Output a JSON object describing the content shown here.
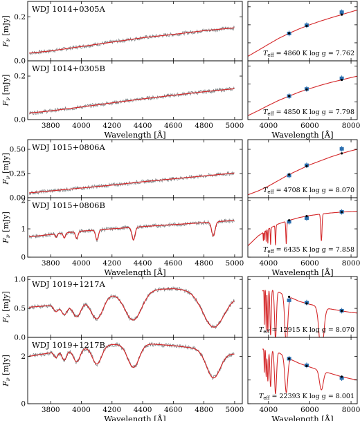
{
  "chart_data": [
    {
      "type": "line",
      "panel": "spectrum",
      "label": "WDJ 1014+0305A",
      "ylabel": "F_ν [mJy]",
      "ylabel_parts": {
        "main": "F",
        "sub": "ν",
        "unit": " [mJy]"
      },
      "xlim": [
        3650,
        5050
      ],
      "ylim": [
        0,
        0.27
      ],
      "yticks": [
        0.0,
        0.2
      ],
      "ytick_labels": [
        "0.0",
        "0.2"
      ],
      "xticks": [
        3800,
        4000,
        4200,
        4400,
        4600,
        4800,
        5000
      ],
      "xtick_labels": [],
      "xlabel": "",
      "x": [
        3660,
        3800,
        4000,
        4200,
        4400,
        4600,
        4800,
        5000
      ],
      "y": [
        0.035,
        0.045,
        0.065,
        0.085,
        0.105,
        0.12,
        0.137,
        0.15
      ],
      "lines": []
    },
    {
      "type": "scatter",
      "panel": "sed",
      "xlim": [
        3000,
        8300
      ],
      "ylim": [
        0,
        0.33
      ],
      "xticks": [
        4000,
        6000,
        8000
      ],
      "xtick_labels": [],
      "yticks": [
        0.0,
        0.1,
        0.2,
        0.3
      ],
      "teff": "4860",
      "logg": "7.762",
      "teff_label": {
        "t": "T",
        "sub": "eff",
        "rest": " = 4860 K  log g = 7.762"
      },
      "model_x": [
        3000,
        3500,
        4000,
        4500,
        5000,
        5500,
        6000,
        6500,
        7000,
        7500,
        8000,
        8300
      ],
      "model_y": [
        0.025,
        0.058,
        0.092,
        0.125,
        0.153,
        0.178,
        0.2,
        0.22,
        0.238,
        0.255,
        0.272,
        0.282
      ],
      "phot_x": [
        5000,
        5850,
        7550
      ],
      "phot_y": [
        0.152,
        0.198,
        0.27
      ],
      "lines": []
    },
    {
      "type": "line",
      "panel": "spectrum",
      "label": "WDJ 1014+0305B",
      "ylabel": "F_ν [mJy]",
      "ylabel_parts": {
        "main": "F",
        "sub": "ν",
        "unit": " [mJy]"
      },
      "xlim": [
        3650,
        5050
      ],
      "ylim": [
        0,
        0.27
      ],
      "yticks": [
        0.0,
        0.2
      ],
      "ytick_labels": [
        "0.0",
        "0.2"
      ],
      "xticks": [
        3800,
        4000,
        4200,
        4400,
        4600,
        4800,
        5000
      ],
      "xtick_labels": [
        "3800",
        "4000",
        "4200",
        "4400",
        "4600",
        "4800",
        "5000"
      ],
      "xlabel": "Wavelength [Å]",
      "x": [
        3660,
        3800,
        4000,
        4200,
        4400,
        4600,
        4800,
        5000
      ],
      "y": [
        0.03,
        0.04,
        0.058,
        0.077,
        0.095,
        0.112,
        0.128,
        0.142
      ],
      "lines": []
    },
    {
      "type": "scatter",
      "panel": "sed",
      "xlim": [
        3000,
        8300
      ],
      "ylim": [
        0,
        0.33
      ],
      "xticks": [
        4000,
        6000,
        8000
      ],
      "xtick_labels": [
        "4000",
        "6000",
        "8000"
      ],
      "xlabel": "Wavelength [Å]",
      "yticks": [
        0.0,
        0.1,
        0.2,
        0.3
      ],
      "teff": "4850",
      "logg": "7.798",
      "teff_label": {
        "t": "T",
        "sub": "eff",
        "rest": " = 4850 K  log g = 7.798"
      },
      "model_x": [
        3000,
        3500,
        4000,
        4500,
        5000,
        5500,
        6000,
        6500,
        7000,
        7500,
        8000,
        8300
      ],
      "model_y": [
        0.022,
        0.05,
        0.08,
        0.108,
        0.132,
        0.155,
        0.174,
        0.192,
        0.208,
        0.222,
        0.236,
        0.244
      ],
      "phot_x": [
        5000,
        5850,
        7550
      ],
      "phot_y": [
        0.132,
        0.172,
        0.232
      ],
      "lines": []
    },
    {
      "type": "line",
      "panel": "spectrum",
      "label": "WDJ 1015+0806A",
      "ylabel": "F_ν [mJy]",
      "ylabel_parts": {
        "main": "F",
        "sub": "ν",
        "unit": " [mJy]"
      },
      "xlim": [
        3650,
        5050
      ],
      "ylim": [
        0,
        0.6
      ],
      "yticks": [
        0.0,
        0.25,
        0.5
      ],
      "ytick_labels": [
        "0.00",
        "0.25",
        "0.50"
      ],
      "xticks": [
        3800,
        4000,
        4200,
        4400,
        4600,
        4800,
        5000
      ],
      "xtick_labels": [],
      "xlabel": "",
      "x": [
        3660,
        3800,
        4000,
        4200,
        4400,
        4600,
        4800,
        5000
      ],
      "y": [
        0.05,
        0.07,
        0.1,
        0.13,
        0.165,
        0.195,
        0.225,
        0.255
      ],
      "lines": []
    },
    {
      "type": "scatter",
      "panel": "sed",
      "xlim": [
        3000,
        8300
      ],
      "ylim": [
        0,
        0.6
      ],
      "xticks": [
        4000,
        6000,
        8000
      ],
      "xtick_labels": [],
      "yticks": [
        0.0,
        0.25,
        0.5
      ],
      "teff": "4708",
      "logg": "8.070",
      "teff_label": {
        "t": "T",
        "sub": "eff",
        "rest": " = 4708 K  log g = 8.070"
      },
      "model_x": [
        3000,
        3500,
        4000,
        4500,
        5000,
        5500,
        6000,
        6500,
        7000,
        7500,
        8000,
        8300
      ],
      "model_y": [
        0.03,
        0.07,
        0.12,
        0.18,
        0.24,
        0.29,
        0.34,
        0.38,
        0.42,
        0.455,
        0.485,
        0.5
      ],
      "phot_x": [
        5000,
        5850,
        7550
      ],
      "phot_y": [
        0.23,
        0.335,
        0.505
      ],
      "lines": []
    },
    {
      "type": "line",
      "panel": "spectrum",
      "label": "WDJ 1015+0806B",
      "ylabel": "F_ν [mJy]",
      "ylabel_parts": {
        "main": "F",
        "sub": "ν",
        "unit": " [mJy]"
      },
      "xlim": [
        3650,
        5050
      ],
      "ylim": [
        0,
        2.1
      ],
      "yticks": [
        0,
        1,
        2
      ],
      "ytick_labels": [
        "0",
        "1",
        "2"
      ],
      "xticks": [
        3800,
        4000,
        4200,
        4400,
        4600,
        4800,
        5000
      ],
      "xtick_labels": [
        "3800",
        "4000",
        "4200",
        "4400",
        "4600",
        "4800",
        "5000"
      ],
      "xlabel": "Wavelength [Å]",
      "x": [
        3660,
        3800,
        4000,
        4200,
        4400,
        4600,
        4800,
        5000
      ],
      "y": [
        0.72,
        0.8,
        0.92,
        1.0,
        1.08,
        1.15,
        1.22,
        1.3
      ],
      "lines": [
        {
          "c": 3835,
          "depth": 0.12,
          "width": 6
        },
        {
          "c": 3889,
          "depth": 0.18,
          "width": 7
        },
        {
          "c": 3970,
          "depth": 0.25,
          "width": 8
        },
        {
          "c": 4102,
          "depth": 0.35,
          "width": 9
        },
        {
          "c": 4340,
          "depth": 0.45,
          "width": 10
        },
        {
          "c": 4861,
          "depth": 0.5,
          "width": 11
        }
      ]
    },
    {
      "type": "scatter",
      "panel": "sed",
      "xlim": [
        3000,
        8300
      ],
      "ylim": [
        0,
        2.1
      ],
      "xticks": [
        4000,
        6000,
        8000
      ],
      "xtick_labels": [
        "4000",
        "6000",
        "8000"
      ],
      "xlabel": "Wavelength [Å]",
      "yticks": [
        0,
        1,
        2
      ],
      "teff": "6435",
      "logg": "7.858",
      "teff_label": {
        "t": "T",
        "sub": "eff",
        "rest": " = 6435 K  log g = 7.858"
      },
      "model_x": [
        3000,
        3500,
        4000,
        4500,
        5000,
        5500,
        6000,
        6500,
        7000,
        7500,
        8000,
        8300
      ],
      "model_y": [
        0.4,
        0.75,
        1.0,
        1.18,
        1.3,
        1.4,
        1.47,
        1.52,
        1.56,
        1.59,
        1.61,
        1.62
      ],
      "phot_x": [
        5000,
        5850,
        7550
      ],
      "phot_y": [
        1.25,
        1.38,
        1.6
      ],
      "lines": [
        {
          "c": 3750,
          "depth": 0.3,
          "width": 10
        },
        {
          "c": 3800,
          "depth": 0.3,
          "width": 10
        },
        {
          "c": 3889,
          "depth": 0.4,
          "width": 10
        },
        {
          "c": 3970,
          "depth": 0.5,
          "width": 12
        },
        {
          "c": 4102,
          "depth": 0.6,
          "width": 14
        },
        {
          "c": 4340,
          "depth": 0.7,
          "width": 18
        },
        {
          "c": 4861,
          "depth": 0.8,
          "width": 22
        },
        {
          "c": 6563,
          "depth": 0.95,
          "width": 30
        }
      ]
    },
    {
      "type": "line",
      "panel": "spectrum",
      "label": "WDJ 1019+1217A",
      "ylabel": "F_ν [mJy]",
      "ylabel_parts": {
        "main": "F",
        "sub": "ν",
        "unit": " [mJy]"
      },
      "xlim": [
        3650,
        5050
      ],
      "ylim": [
        0,
        1.05
      ],
      "yticks": [
        0.0,
        0.5,
        1.0
      ],
      "ytick_labels": [
        "0.0",
        "0.5",
        "1.0"
      ],
      "xticks": [
        3800,
        4000,
        4200,
        4400,
        4600,
        4800,
        5000
      ],
      "xtick_labels": [],
      "xlabel": "",
      "x": [
        3660,
        3800,
        4000,
        4200,
        4400,
        4600,
        4800,
        5000
      ],
      "y": [
        0.52,
        0.55,
        0.65,
        0.75,
        0.82,
        0.84,
        0.8,
        0.72
      ],
      "lines": [
        {
          "c": 3835,
          "depth": 0.12,
          "width": 15
        },
        {
          "c": 3889,
          "depth": 0.2,
          "width": 20
        },
        {
          "c": 3970,
          "depth": 0.28,
          "width": 28
        },
        {
          "c": 4102,
          "depth": 0.38,
          "width": 40
        },
        {
          "c": 4340,
          "depth": 0.5,
          "width": 55
        },
        {
          "c": 4861,
          "depth": 0.6,
          "width": 70
        }
      ]
    },
    {
      "type": "scatter",
      "panel": "sed",
      "xlim": [
        3000,
        8300
      ],
      "ylim": [
        0,
        1.05
      ],
      "xticks": [
        4000,
        6000,
        8000
      ],
      "xtick_labels": [],
      "yticks": [
        0.0,
        0.5,
        1.0
      ],
      "teff": "12915",
      "logg": "8.070",
      "teff_label": {
        "t": "T",
        "sub": "eff",
        "rest": " = 12915 K  log g = 8.070"
      },
      "model_x": [
        3700,
        4000,
        4500,
        5000,
        5500,
        6000,
        6500,
        7000,
        7500,
        8000,
        8300
      ],
      "model_y": [
        0.8,
        0.85,
        0.78,
        0.7,
        0.62,
        0.57,
        0.53,
        0.49,
        0.46,
        0.43,
        0.42
      ],
      "phot_x": [
        5000,
        5850,
        7550
      ],
      "phot_y": [
        0.64,
        0.6,
        0.46
      ],
      "lines": [
        {
          "c": 3800,
          "depth": 0.6,
          "width": 12
        },
        {
          "c": 3889,
          "depth": 0.7,
          "width": 15
        },
        {
          "c": 3970,
          "depth": 0.75,
          "width": 20
        },
        {
          "c": 4102,
          "depth": 0.8,
          "width": 30
        },
        {
          "c": 4340,
          "depth": 0.85,
          "width": 45
        },
        {
          "c": 4861,
          "depth": 0.85,
          "width": 70
        },
        {
          "c": 6563,
          "depth": 0.8,
          "width": 110
        }
      ]
    },
    {
      "type": "line",
      "panel": "spectrum",
      "label": "WDJ 1019+1217B",
      "ylabel": "F_ν [mJy]",
      "ylabel_parts": {
        "main": "F",
        "sub": "ν",
        "unit": " [mJy]"
      },
      "xlim": [
        3650,
        5050
      ],
      "ylim": [
        0,
        2.8
      ],
      "yticks": [
        0,
        2
      ],
      "ytick_labels": [
        "0",
        "2"
      ],
      "xticks": [
        3800,
        4000,
        4200,
        4400,
        4600,
        4800,
        5000
      ],
      "xtick_labels": [
        "3800",
        "4000",
        "4200",
        "4400",
        "4600",
        "4800",
        "5000"
      ],
      "xlabel": "Wavelength [Å]",
      "x": [
        3660,
        3800,
        4000,
        4200,
        4400,
        4600,
        4800,
        5000
      ],
      "y": [
        2.0,
        2.15,
        2.35,
        2.5,
        2.55,
        2.45,
        2.3,
        2.1
      ],
      "lines": [
        {
          "c": 3835,
          "depth": 0.25,
          "width": 12
        },
        {
          "c": 3889,
          "depth": 0.4,
          "width": 15
        },
        {
          "c": 3970,
          "depth": 0.55,
          "width": 22
        },
        {
          "c": 4102,
          "depth": 0.75,
          "width": 30
        },
        {
          "c": 4340,
          "depth": 1.0,
          "width": 38
        },
        {
          "c": 4861,
          "depth": 1.15,
          "width": 45
        }
      ]
    },
    {
      "type": "scatter",
      "panel": "sed",
      "xlim": [
        3000,
        8300
      ],
      "ylim": [
        0,
        2.8
      ],
      "xticks": [
        4000,
        6000,
        8000
      ],
      "xtick_labels": [
        "4000",
        "6000",
        "8000"
      ],
      "xlabel": "Wavelength [Å]",
      "yticks": [
        0,
        1,
        2
      ],
      "teff": "22393",
      "logg": "8.001",
      "teff_label": {
        "t": "T",
        "sub": "eff",
        "rest": " = 22393 K  log g = 8.001"
      },
      "model_x": [
        3700,
        4000,
        4500,
        5000,
        5500,
        6000,
        6500,
        7000,
        7500,
        8000,
        8300
      ],
      "model_y": [
        2.3,
        2.35,
        2.15,
        1.9,
        1.7,
        1.55,
        1.4,
        1.28,
        1.15,
        1.05,
        1.0
      ],
      "phot_x": [
        5000,
        5850,
        7550
      ],
      "phot_y": [
        1.9,
        1.62,
        1.08
      ],
      "lines": [
        {
          "c": 3800,
          "depth": 1.0,
          "width": 15
        },
        {
          "c": 3889,
          "depth": 1.2,
          "width": 18
        },
        {
          "c": 3970,
          "depth": 1.4,
          "width": 25
        },
        {
          "c": 4102,
          "depth": 1.6,
          "width": 35
        },
        {
          "c": 4340,
          "depth": 1.8,
          "width": 50
        },
        {
          "c": 4861,
          "depth": 1.5,
          "width": 70
        },
        {
          "c": 6563,
          "depth": 0.8,
          "width": 90
        }
      ]
    }
  ],
  "colors": {
    "observed": "#7b8184",
    "model": "#d4282a",
    "photometry": "#2a6fb0",
    "synthetic": "#000000",
    "axis": "#000000"
  }
}
